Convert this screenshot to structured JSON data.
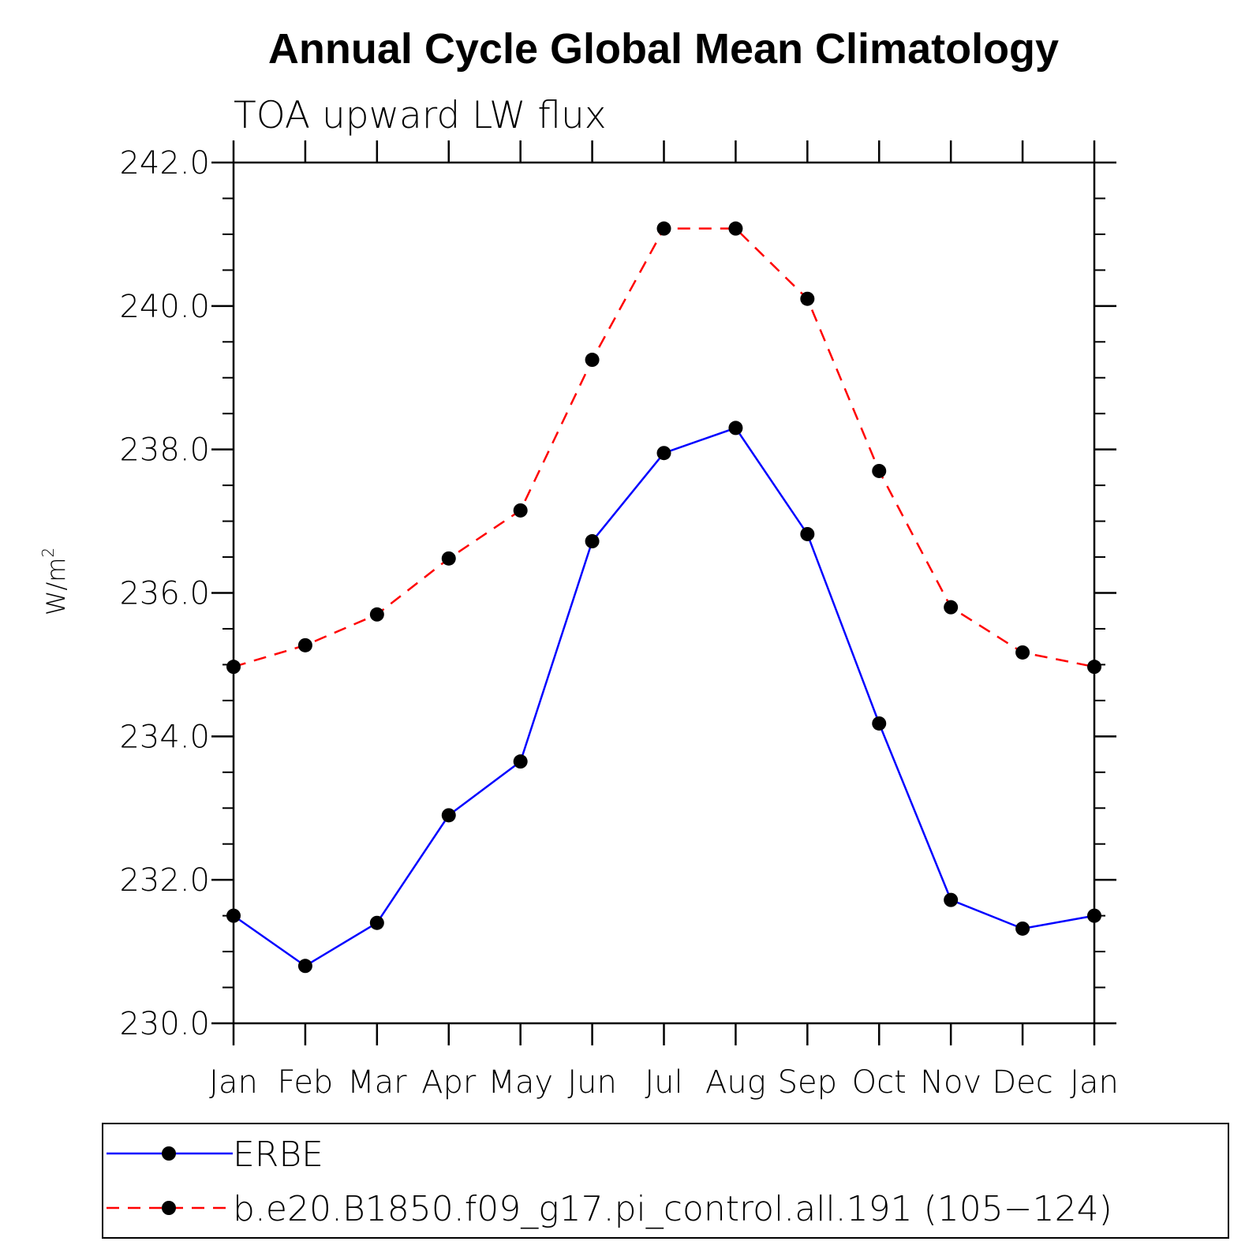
{
  "chart_data": {
    "type": "line",
    "title": "Annual Cycle Global Mean Climatology",
    "subtitle": "TOA upward LW flux",
    "ylabel": "W/m",
    "ylabel_sup": "2",
    "xlabel": "",
    "ylim": [
      230.0,
      242.0
    ],
    "yticks": [
      "230.0",
      "232.0",
      "234.0",
      "236.0",
      "238.0",
      "240.0",
      "242.0"
    ],
    "categories": [
      "Jan",
      "Feb",
      "Mar",
      "Apr",
      "May",
      "Jun",
      "Jul",
      "Aug",
      "Sep",
      "Oct",
      "Nov",
      "Dec",
      "Jan"
    ],
    "series": [
      {
        "name": "ERBE",
        "color": "#0000ff",
        "dash": "solid",
        "values": [
          231.5,
          230.8,
          231.4,
          232.9,
          233.65,
          236.72,
          237.95,
          238.3,
          236.82,
          234.18,
          231.72,
          231.32,
          231.5
        ]
      },
      {
        "name": "b.e20.B1850.f09_g17.pi_control.all.191 (105−124)",
        "color": "#ff0000",
        "dash": "dashed",
        "values": [
          234.97,
          235.27,
          235.7,
          236.48,
          237.15,
          239.25,
          241.08,
          241.08,
          240.1,
          237.7,
          235.8,
          235.17,
          234.97
        ]
      }
    ],
    "legend_position": "bottom"
  }
}
